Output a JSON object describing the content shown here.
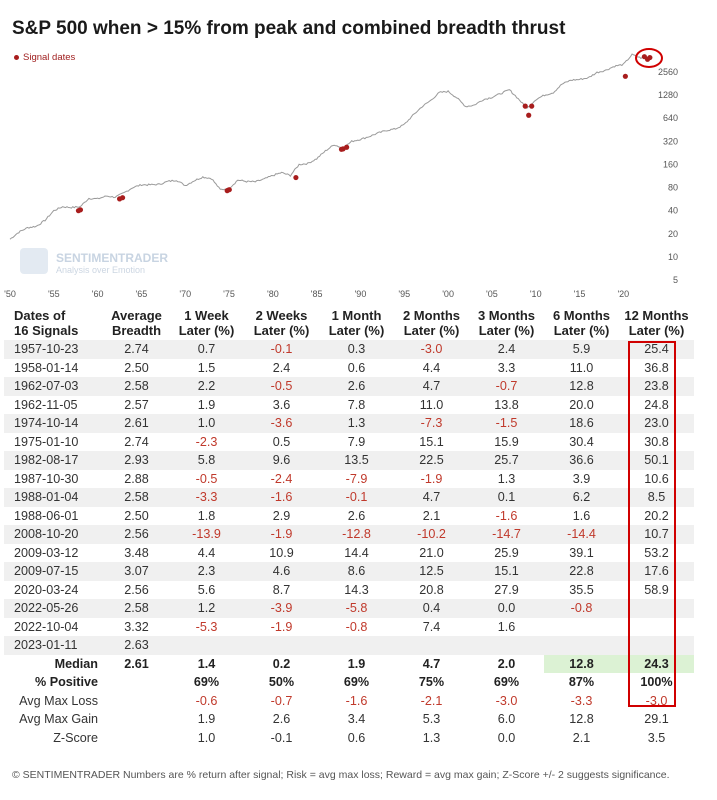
{
  "title": "S&P 500 when > 15% from peak and combined breadth thrust",
  "legend": "Signal dates",
  "watermark": {
    "name": "SENTIMENTRADER",
    "tagline": "Analysis over Emotion"
  },
  "chart_data": {
    "type": "line",
    "title": "S&P 500 when > 15% from peak and combined breadth thrust",
    "y_scale": "log",
    "y_ticks": [
      5,
      10,
      20,
      40,
      80,
      160,
      320,
      640,
      1280,
      2560
    ],
    "x_tick_labels": [
      "'50",
      "'55",
      "'60",
      "'65",
      "'70",
      "'75",
      "'80",
      "'85",
      "'90",
      "'95",
      "'00",
      "'05",
      "'10",
      "'15",
      "'20"
    ],
    "x_range": [
      1950,
      2023.5
    ],
    "series": [
      {
        "x": [
          1950,
          1951,
          1952,
          1953,
          1954,
          1955,
          1956,
          1957,
          1958,
          1959,
          1960,
          1961,
          1962,
          1963,
          1964,
          1965,
          1966,
          1967,
          1968,
          1969,
          1970,
          1971,
          1972,
          1973,
          1974,
          1975,
          1976,
          1977,
          1978,
          1979,
          1980,
          1981,
          1982,
          1983,
          1984,
          1985,
          1986,
          1987,
          1988,
          1989,
          1990,
          1991,
          1992,
          1993,
          1994,
          1995,
          1996,
          1997,
          1998,
          1999,
          2000,
          2001,
          2002,
          2003,
          2004,
          2005,
          2006,
          2007,
          2008,
          2009,
          2010,
          2011,
          2012,
          2013,
          2014,
          2015,
          2016,
          2017,
          2018,
          2019,
          2020,
          2021,
          2022,
          2023
        ],
        "values": [
          17,
          21,
          24,
          25,
          30,
          40,
          45,
          44,
          45,
          58,
          57,
          62,
          60,
          68,
          80,
          87,
          87,
          88,
          96,
          100,
          85,
          98,
          110,
          105,
          75,
          78,
          100,
          96,
          95,
          103,
          115,
          125,
          115,
          160,
          165,
          190,
          240,
          290,
          260,
          320,
          340,
          370,
          410,
          445,
          465,
          530,
          700,
          900,
          1090,
          1380,
          1430,
          1180,
          910,
          950,
          1120,
          1200,
          1340,
          1500,
          1150,
          860,
          1120,
          1280,
          1380,
          1780,
          2000,
          2050,
          2150,
          2530,
          2700,
          3050,
          3200,
          4300,
          3900,
          3950
        ]
      }
    ],
    "signals": [
      {
        "date": "1957-10-23",
        "value": 40
      },
      {
        "date": "1958-01-14",
        "value": 41
      },
      {
        "date": "1962-07-03",
        "value": 57
      },
      {
        "date": "1962-11-05",
        "value": 59
      },
      {
        "date": "1974-10-14",
        "value": 73
      },
      {
        "date": "1975-01-10",
        "value": 75
      },
      {
        "date": "1982-08-17",
        "value": 108
      },
      {
        "date": "1987-10-30",
        "value": 252
      },
      {
        "date": "1988-01-04",
        "value": 255
      },
      {
        "date": "1988-06-01",
        "value": 268
      },
      {
        "date": "2008-10-20",
        "value": 920
      },
      {
        "date": "2009-03-12",
        "value": 700
      },
      {
        "date": "2009-07-15",
        "value": 920
      },
      {
        "date": "2020-03-24",
        "value": 2250
      },
      {
        "date": "2022-05-26",
        "value": 4050
      },
      {
        "date": "2022-10-04",
        "value": 3750
      },
      {
        "date": "2023-01-11",
        "value": 3950
      }
    ]
  },
  "table": {
    "headers": [
      [
        "Dates of",
        "16 Signals"
      ],
      [
        "Average",
        "Breadth"
      ],
      [
        "1 Week",
        "Later (%)"
      ],
      [
        "2 Weeks",
        "Later (%)"
      ],
      [
        "1 Month",
        "Later (%)"
      ],
      [
        "2 Months",
        "Later (%)"
      ],
      [
        "3 Months",
        "Later (%)"
      ],
      [
        "6 Months",
        "Later (%)"
      ],
      [
        "12 Months",
        "Later (%)"
      ]
    ],
    "rows": [
      [
        "1957-10-23",
        "2.74",
        "0.7",
        "-0.1",
        "0.3",
        "-3.0",
        "2.4",
        "5.9",
        "25.4"
      ],
      [
        "1958-01-14",
        "2.50",
        "1.5",
        "2.4",
        "0.6",
        "4.4",
        "3.3",
        "11.0",
        "36.8"
      ],
      [
        "1962-07-03",
        "2.58",
        "2.2",
        "-0.5",
        "2.6",
        "4.7",
        "-0.7",
        "12.8",
        "23.8"
      ],
      [
        "1962-11-05",
        "2.57",
        "1.9",
        "3.6",
        "7.8",
        "11.0",
        "13.8",
        "20.0",
        "24.8"
      ],
      [
        "1974-10-14",
        "2.61",
        "1.0",
        "-3.6",
        "1.3",
        "-7.3",
        "-1.5",
        "18.6",
        "23.0"
      ],
      [
        "1975-01-10",
        "2.74",
        "-2.3",
        "0.5",
        "7.9",
        "15.1",
        "15.9",
        "30.4",
        "30.8"
      ],
      [
        "1982-08-17",
        "2.93",
        "5.8",
        "9.6",
        "13.5",
        "22.5",
        "25.7",
        "36.6",
        "50.1"
      ],
      [
        "1987-10-30",
        "2.88",
        "-0.5",
        "-2.4",
        "-7.9",
        "-1.9",
        "1.3",
        "3.9",
        "10.6"
      ],
      [
        "1988-01-04",
        "2.58",
        "-3.3",
        "-1.6",
        "-0.1",
        "4.7",
        "0.1",
        "6.2",
        "8.5"
      ],
      [
        "1988-06-01",
        "2.50",
        "1.8",
        "2.9",
        "2.6",
        "2.1",
        "-1.6",
        "1.6",
        "20.2"
      ],
      [
        "2008-10-20",
        "2.56",
        "-13.9",
        "-1.9",
        "-12.8",
        "-10.2",
        "-14.7",
        "-14.4",
        "10.7"
      ],
      [
        "2009-03-12",
        "3.48",
        "4.4",
        "10.9",
        "14.4",
        "21.0",
        "25.9",
        "39.1",
        "53.2"
      ],
      [
        "2009-07-15",
        "3.07",
        "2.3",
        "4.6",
        "8.6",
        "12.5",
        "15.1",
        "22.8",
        "17.6"
      ],
      [
        "2020-03-24",
        "2.56",
        "5.6",
        "8.7",
        "14.3",
        "20.8",
        "27.9",
        "35.5",
        "58.9"
      ],
      [
        "2022-05-26",
        "2.58",
        "1.2",
        "-3.9",
        "-5.8",
        "0.4",
        "0.0",
        "-0.8",
        ""
      ],
      [
        "2022-10-04",
        "3.32",
        "-5.3",
        "-1.9",
        "-0.8",
        "7.4",
        "1.6",
        "",
        ""
      ],
      [
        "2023-01-11",
        "2.63",
        "",
        "",
        "",
        "",
        "",
        "",
        ""
      ]
    ],
    "median": [
      "Median",
      "2.61",
      "1.4",
      "0.2",
      "1.9",
      "4.7",
      "2.0",
      "12.8",
      "24.3"
    ],
    "positive": [
      "% Positive",
      "",
      "69%",
      "50%",
      "69%",
      "75%",
      "69%",
      "87%",
      "100%"
    ],
    "avg_max_loss": [
      "Avg Max Loss",
      "",
      "-0.6",
      "-0.7",
      "-1.6",
      "-2.1",
      "-3.0",
      "-3.3",
      "-3.0"
    ],
    "avg_max_gain": [
      "Avg Max Gain",
      "",
      "1.9",
      "2.6",
      "3.4",
      "5.3",
      "6.0",
      "12.8",
      "29.1"
    ],
    "z_score": [
      "Z-Score",
      "",
      "1.0",
      "-0.1",
      "0.6",
      "1.3",
      "0.0",
      "2.1",
      "3.5"
    ]
  },
  "footer": "© SENTIMENTRADER  Numbers are % return after signal; Risk = avg max loss; Reward = avg max gain; Z-Score +/- 2 suggests significance.",
  "colors": {
    "line": "#9a9a9a",
    "signal": "#a81d1d",
    "negative": "#c0392b",
    "highlight": "#dcf2d4",
    "box": "#d00000"
  }
}
